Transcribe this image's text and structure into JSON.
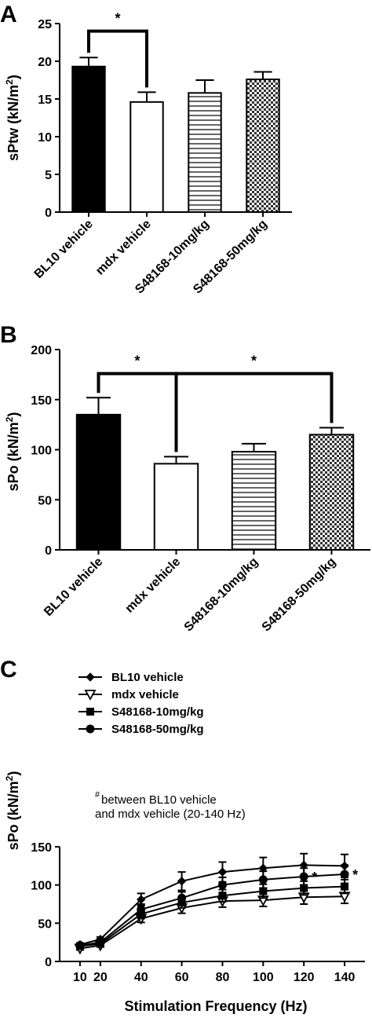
{
  "chart_data": [
    {
      "id": "A",
      "type": "bar",
      "panel_label": "A",
      "ylabel": "sPtw (kN/m",
      "ylabel_sup": "2",
      "ylabel_end": ")",
      "ylim": [
        0,
        25
      ],
      "yticks": [
        0,
        5,
        10,
        15,
        20,
        25
      ],
      "categories": [
        "BL10 vehicle",
        "mdx vehicle",
        "S48168-10mg/kg",
        "S48168-50mg/kg"
      ],
      "values": [
        19.3,
        14.6,
        15.8,
        17.6
      ],
      "errors": [
        1.2,
        1.3,
        1.7,
        1.0
      ],
      "fills": [
        "solid",
        "white",
        "hlines",
        "checker"
      ],
      "significance": [
        {
          "from": 0,
          "to": 1,
          "label": "*",
          "level": 24.0
        }
      ]
    },
    {
      "id": "B",
      "type": "bar",
      "panel_label": "B",
      "ylabel": "sPo (kN/m",
      "ylabel_sup": "2",
      "ylabel_end": ")",
      "ylim": [
        0,
        200
      ],
      "yticks": [
        0,
        50,
        100,
        150,
        200
      ],
      "categories": [
        "BL10 vehicle",
        "mdx vehicle",
        "S48168-10mg/kg",
        "S48168-50mg/kg"
      ],
      "values": [
        135,
        86,
        98,
        115
      ],
      "errors": [
        17,
        7,
        8,
        7
      ],
      "fills": [
        "solid",
        "white",
        "hlines",
        "checker"
      ],
      "significance": [
        {
          "from": 0,
          "to": 1,
          "label": "*",
          "level": 176
        },
        {
          "from": 1,
          "to": 3,
          "label": "*",
          "level": 176
        }
      ]
    },
    {
      "id": "C",
      "type": "line",
      "panel_label": "C",
      "xlabel": "Stimulation Frequency (Hz)",
      "ylabel": "sPo (kN/m",
      "ylabel_sup": "2",
      "ylabel_end": ")",
      "ylim": [
        0,
        150
      ],
      "yticks": [
        0,
        50,
        100,
        150
      ],
      "x": [
        10,
        20,
        40,
        60,
        80,
        100,
        120,
        140
      ],
      "series": [
        {
          "name": "BL10 vehicle",
          "marker": "diamond",
          "values": [
            22,
            29,
            81,
            105,
            117,
            122,
            126,
            125
          ],
          "errors": [
            2,
            3,
            8,
            12,
            13,
            14,
            15,
            15
          ]
        },
        {
          "name": "mdx vehicle",
          "marker": "triangle-down",
          "values": [
            17,
            21,
            56,
            70,
            79,
            80,
            84,
            85
          ],
          "errors": [
            2,
            2,
            5,
            7,
            8,
            8,
            9,
            9
          ]
        },
        {
          "name": "S48168-10mg/kg",
          "marker": "square",
          "values": [
            20,
            23,
            62,
            77,
            86,
            92,
            96,
            98
          ],
          "errors": [
            2,
            2,
            6,
            7,
            8,
            9,
            9,
            9
          ]
        },
        {
          "name": "S48168-50mg/kg",
          "marker": "circle",
          "values": [
            21,
            25,
            68,
            83,
            100,
            107,
            111,
            114
          ],
          "errors": [
            2,
            2,
            7,
            8,
            10,
            11,
            11,
            12
          ]
        }
      ],
      "annotations": [
        {
          "text": "*",
          "x": 120,
          "y": 112
        },
        {
          "text": "*",
          "x": 140,
          "y": 115
        }
      ],
      "note_symbol": "#",
      "note_lines": [
        "between BL10 vehicle",
        "and mdx vehicle (20-140 Hz)"
      ],
      "legend_placement": "top-left"
    }
  ]
}
